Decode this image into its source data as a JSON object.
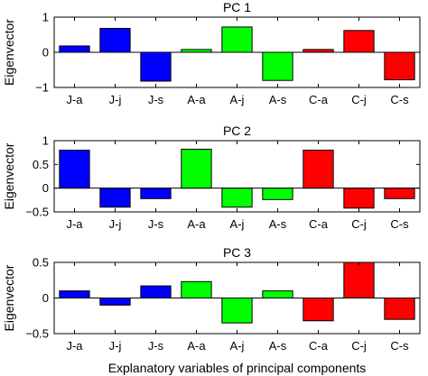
{
  "chart_data": [
    {
      "type": "bar",
      "title": "PC 1",
      "ylabel": "Eigenvector",
      "xlabel": "",
      "categories": [
        "J-a",
        "J-j",
        "J-s",
        "A-a",
        "A-j",
        "A-s",
        "C-a",
        "C-j",
        "C-s"
      ],
      "values": [
        0.18,
        0.68,
        -0.82,
        0.08,
        0.72,
        -0.8,
        0.08,
        0.62,
        -0.78
      ],
      "colors": [
        "#0000ff",
        "#0000ff",
        "#0000ff",
        "#00ff00",
        "#00ff00",
        "#00ff00",
        "#ff0000",
        "#ff0000",
        "#ff0000"
      ],
      "ylim": [
        -1,
        1
      ],
      "yticks": [
        -1,
        0,
        1
      ],
      "ytick_labels": [
        "−1",
        "0",
        "1"
      ],
      "grid": false
    },
    {
      "type": "bar",
      "title": "PC 2",
      "ylabel": "Eigenvector",
      "xlabel": "",
      "categories": [
        "J-a",
        "J-j",
        "J-s",
        "A-a",
        "A-j",
        "A-s",
        "C-a",
        "C-j",
        "C-s"
      ],
      "values": [
        0.8,
        -0.4,
        -0.22,
        0.82,
        -0.4,
        -0.24,
        0.8,
        -0.42,
        -0.22
      ],
      "colors": [
        "#0000ff",
        "#0000ff",
        "#0000ff",
        "#00ff00",
        "#00ff00",
        "#00ff00",
        "#ff0000",
        "#ff0000",
        "#ff0000"
      ],
      "ylim": [
        -0.5,
        1
      ],
      "yticks": [
        -0.5,
        0,
        0.5,
        1
      ],
      "ytick_labels": [
        "−0.5",
        "0",
        "0.5",
        "1"
      ],
      "grid": false
    },
    {
      "type": "bar",
      "title": "PC 3",
      "ylabel": "Eigenvector",
      "xlabel": "Explanatory variables of principal components",
      "categories": [
        "J-a",
        "J-j",
        "J-s",
        "A-a",
        "A-j",
        "A-s",
        "C-a",
        "C-j",
        "C-s"
      ],
      "values": [
        0.1,
        -0.1,
        0.17,
        0.23,
        -0.35,
        0.1,
        -0.32,
        0.5,
        -0.3
      ],
      "colors": [
        "#0000ff",
        "#0000ff",
        "#0000ff",
        "#00ff00",
        "#00ff00",
        "#00ff00",
        "#ff0000",
        "#ff0000",
        "#ff0000"
      ],
      "ylim": [
        -0.5,
        0.5
      ],
      "yticks": [
        -0.5,
        0,
        0.5
      ],
      "ytick_labels": [
        "−0.5",
        "0",
        "0.5"
      ],
      "grid": false
    }
  ]
}
